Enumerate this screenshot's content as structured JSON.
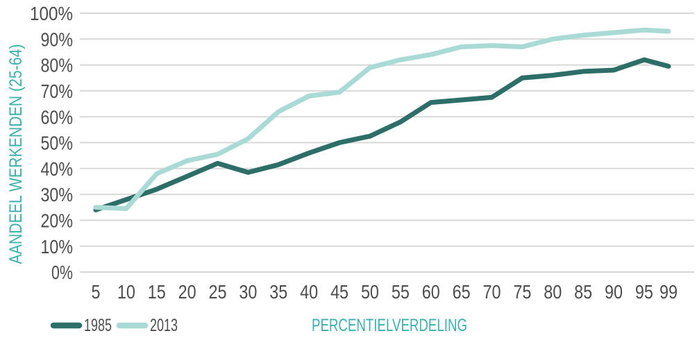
{
  "chart_data": {
    "type": "line",
    "title": "",
    "xlabel": "PERCENTIELVERDELING",
    "ylabel": "AANDEEL WERKENDEN (25-64)",
    "x": [
      5,
      10,
      15,
      20,
      25,
      30,
      35,
      40,
      45,
      50,
      55,
      60,
      65,
      70,
      75,
      80,
      85,
      90,
      95,
      99
    ],
    "x_tick_labels": [
      "5",
      "10",
      "15",
      "20",
      "25",
      "30",
      "35",
      "40",
      "45",
      "50",
      "55",
      "60",
      "65",
      "70",
      "75",
      "80",
      "85",
      "90",
      "95",
      "99"
    ],
    "y_ticks": [
      "0%",
      "10%",
      "20%",
      "30%",
      "40%",
      "50%",
      "60%",
      "70%",
      "80%",
      "90%",
      "100%"
    ],
    "ylim": [
      0,
      100
    ],
    "xlim": [
      5,
      99
    ],
    "grid": "horizontal",
    "legend_position": "bottom-left",
    "series": [
      {
        "name": "1985",
        "color": "#2D6E69",
        "values": [
          24,
          28,
          32,
          37,
          42,
          38.5,
          41.5,
          46,
          50,
          52.5,
          58,
          65.5,
          66.5,
          67.5,
          75,
          76,
          77.5,
          78,
          82,
          79.5
        ]
      },
      {
        "name": "2013",
        "color": "#A9DAD6",
        "values": [
          25,
          24.5,
          38,
          43,
          45.5,
          51.5,
          62,
          68,
          69.5,
          79,
          82,
          84,
          87,
          87.5,
          87,
          90,
          91.5,
          92.5,
          93.5,
          93
        ]
      }
    ]
  },
  "legend": {
    "items": [
      {
        "label": "1985",
        "color": "#2D6E69"
      },
      {
        "label": "2013",
        "color": "#A9DAD6"
      }
    ]
  },
  "colors": {
    "axis_title": "#3BB0AC",
    "tick_label": "#4D4D4F",
    "gridline": "#D8D8D8",
    "background": "#FFFFFF",
    "series_1985": "#2D6E69",
    "series_2013": "#A9DAD6"
  }
}
